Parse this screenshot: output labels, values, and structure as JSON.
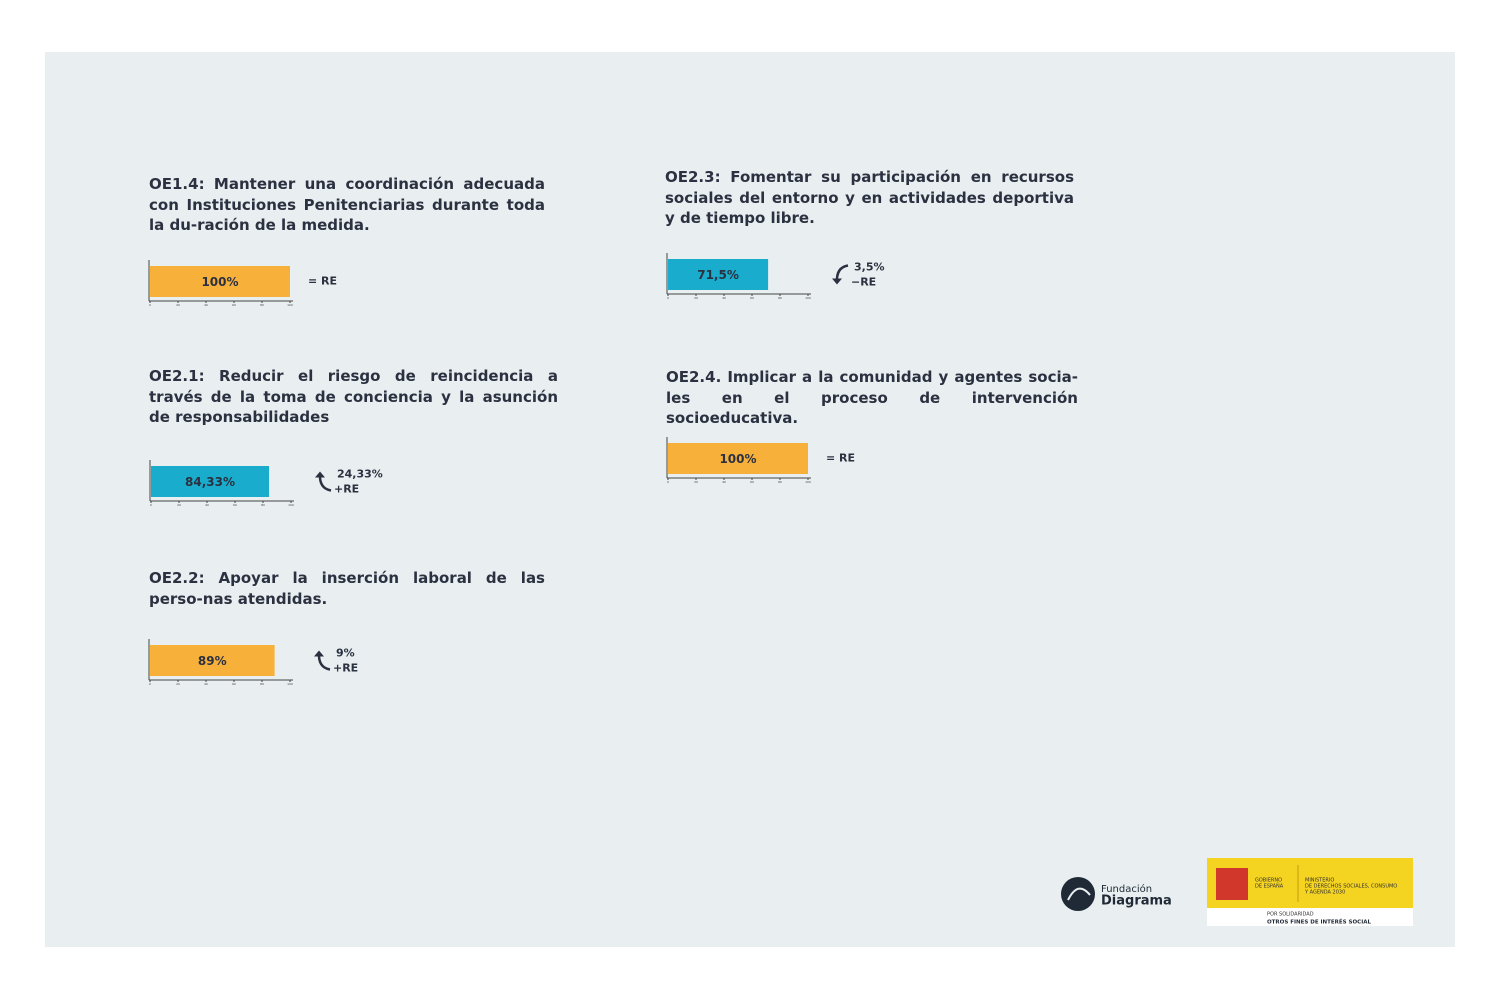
{
  "chart_data": [
    {
      "type": "bar",
      "title": "OE1.4: Mantener una coordinación adecuada con Instituciones Penitenciarias durante toda la du-ración de la medida.",
      "values": [
        100
      ],
      "value_labels": [
        "100%"
      ],
      "color": "#f7b13a",
      "xlim": [
        0,
        100
      ],
      "xticks": [
        0,
        20,
        40,
        60,
        80,
        100
      ],
      "annotation": [
        "= RE"
      ]
    },
    {
      "type": "bar",
      "title": "OE2.1: Reducir el riesgo de reincidencia a través de la toma de conciencia y la asunción de responsabilidades",
      "values": [
        84.33
      ],
      "value_labels": [
        "84,33%"
      ],
      "color": "#1aaccc",
      "xlim": [
        0,
        100
      ],
      "xticks": [
        0,
        20,
        40,
        60,
        80,
        100
      ],
      "annotation": [
        "24,33%",
        "+RE"
      ]
    },
    {
      "type": "bar",
      "title": "OE2.2: Apoyar la inserción laboral de las perso-nas atendidas.",
      "values": [
        89
      ],
      "value_labels": [
        "89%"
      ],
      "color": "#f7b13a",
      "xlim": [
        0,
        100
      ],
      "xticks": [
        0,
        20,
        40,
        60,
        80,
        100
      ],
      "annotation": [
        "9%",
        "+RE"
      ]
    },
    {
      "type": "bar",
      "title": "OE2.3: Fomentar su participación en recursos sociales del entorno y en actividades deportiva y de tiempo libre.",
      "values": [
        71.5
      ],
      "value_labels": [
        "71,5%"
      ],
      "color": "#1aaccc",
      "xlim": [
        0,
        100
      ],
      "xticks": [
        0,
        20,
        40,
        60,
        80,
        100
      ],
      "annotation": [
        "3,5%",
        "−RE"
      ]
    },
    {
      "type": "bar",
      "title": "OE2.4. Implicar a la comunidad y agentes socia-les en el proceso de intervención socioeducativa.",
      "values": [
        100
      ],
      "value_labels": [
        "100%"
      ],
      "color": "#f7b13a",
      "xlim": [
        0,
        100
      ],
      "xticks": [
        0,
        20,
        40,
        60,
        80,
        100
      ],
      "annotation": [
        "= RE"
      ]
    }
  ],
  "logos": {
    "fundacion": [
      "Fundación",
      "Diagrama"
    ],
    "gobierno": [
      "GOBIERNO",
      "DE ESPAÑA"
    ],
    "ministerio": [
      "MINISTERIO",
      "DE DERECHOS SOCIALES, CONSUMO",
      "Y AGENDA 2030"
    ],
    "solidaridad": [
      "POR SOLIDARIDAD",
      "OTROS FINES DE INTERÉS SOCIAL"
    ]
  }
}
